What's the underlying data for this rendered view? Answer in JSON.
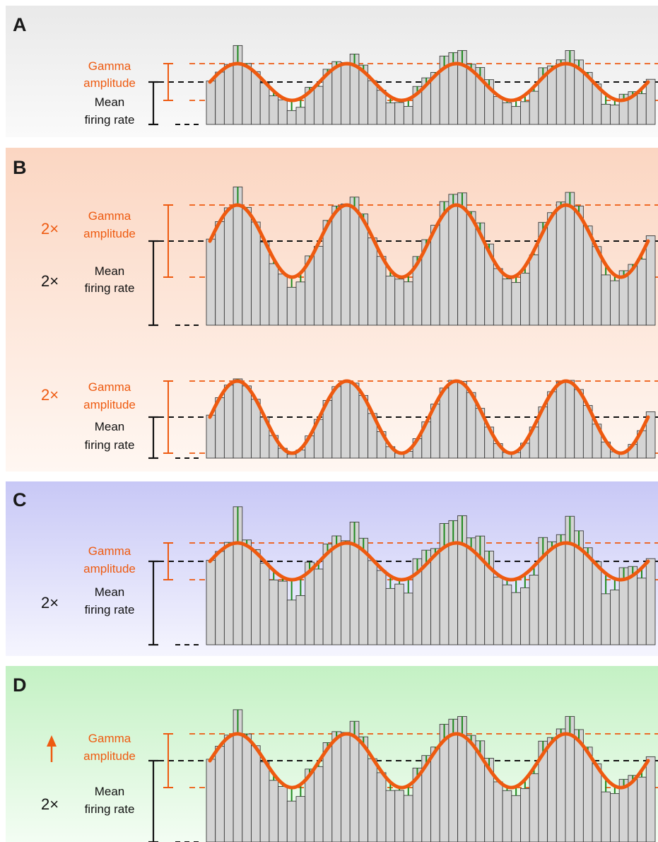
{
  "colors": {
    "synchrony": "#1f8a1f",
    "gamma": "#ee5a10",
    "mean": "#111111",
    "bar_fill": "#d4d4d4",
    "bar_stroke": "#3a3a3a",
    "panel_A_bg": "#eeeeee",
    "panel_B_bg": "#fbd9c6",
    "panel_C_bg": "#c9c9f5",
    "panel_D_bg": "#c6f1c6"
  },
  "deviation_pattern": [
    0.0,
    0.0,
    0.12,
    1.6,
    0.25,
    0.12,
    -0.08,
    -0.42,
    -0.18,
    -0.9,
    -0.8,
    0.4,
    -0.3,
    0.4,
    0.45,
    0.1,
    1.0,
    0.55,
    -0.05,
    -0.08,
    -0.55,
    -0.2,
    -0.65,
    0.62,
    0.62,
    0.28,
    1.05,
    1.0,
    1.25,
    0.5,
    0.95,
    0.7,
    -0.1,
    -0.25,
    -0.6,
    -0.6,
    -0.4,
    0.85,
    0.3,
    0.4,
    1.2,
    0.75,
    0.35,
    0.15,
    -0.9,
    -0.5,
    0.52,
    0.4,
    -0.45,
    0.0
  ],
  "panels": [
    {
      "letter": "A",
      "synchrony": 1,
      "gamma": {
        "mult": "",
        "label1": "Gamma",
        "label2": "amplitude"
      },
      "mean": {
        "mult": "",
        "label1": "Mean",
        "label2": "firing rate"
      },
      "mean_rate": 1,
      "gamma_amplitude": 1
    },
    {
      "letter": "B",
      "synchrony": 1,
      "gamma": {
        "mult": "2×",
        "label1": "Gamma",
        "label2": "amplitude"
      },
      "mean": {
        "mult": "2×",
        "label1": "Mean",
        "label2": "firing rate"
      },
      "mean_rate": 2,
      "gamma_amplitude": 2
    },
    {
      "letter": "",
      "synchrony": 2,
      "gamma": {
        "mult": "2×",
        "label1": "Gamma",
        "label2": "amplitude"
      },
      "mean": {
        "mult": "",
        "label1": "Mean",
        "label2": "firing rate"
      },
      "mean_rate": 1,
      "gamma_amplitude": 2
    },
    {
      "letter": "C",
      "synchrony": 0.5,
      "gamma": {
        "mult": "",
        "label1": "Gamma",
        "label2": "amplitude"
      },
      "mean": {
        "mult": "2×",
        "label1": "Mean",
        "label2": "firing rate"
      },
      "mean_rate": 2,
      "gamma_amplitude": 1
    },
    {
      "letter": "D",
      "synchrony": 0.75,
      "gamma": {
        "mult": "",
        "label1": "Gamma",
        "label2": "amplitude",
        "arrow": "up-arrow-icon"
      },
      "mean": {
        "mult": "2×",
        "label1": "Mean",
        "label2": "firing rate"
      },
      "mean_rate": 2,
      "gamma_amplitude": 1.5
    }
  ]
}
